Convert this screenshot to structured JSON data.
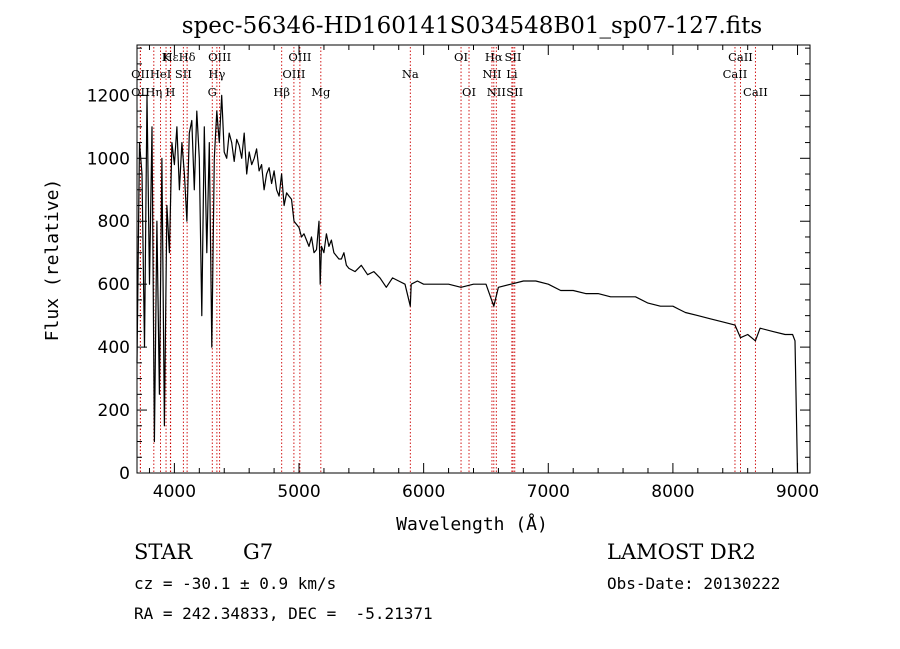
{
  "chart_data": {
    "type": "line",
    "title": "spec-56346-HD160141S034548B01_sp07-127.fits",
    "xlabel": "Wavelength (Å)",
    "ylabel": "Flux (relative)",
    "xlim": [
      3700,
      9100
    ],
    "ylim": [
      0,
      1360
    ],
    "grid": false,
    "xticks": [
      4000,
      5000,
      6000,
      7000,
      8000,
      9000
    ],
    "yticks": [
      0,
      200,
      400,
      600,
      800,
      1000,
      1200
    ],
    "series": [
      {
        "x": [
          3700,
          3720,
          3740,
          3760,
          3780,
          3800,
          3820,
          3840,
          3860,
          3880,
          3900,
          3920,
          3940,
          3960,
          3980,
          4000,
          4020,
          4040,
          4060,
          4080,
          4100,
          4120,
          4140,
          4160,
          4180,
          4200,
          4220,
          4240,
          4260,
          4280,
          4300,
          4320,
          4340,
          4360,
          4380,
          4400,
          4420,
          4440,
          4460,
          4480,
          4500,
          4520,
          4540,
          4560,
          4580,
          4600,
          4620,
          4640,
          4660,
          4680,
          4700,
          4720,
          4740,
          4760,
          4780,
          4800,
          4820,
          4840,
          4860,
          4880,
          4900,
          4920,
          4940,
          4960,
          4980,
          5000,
          5020,
          5040,
          5060,
          5080,
          5100,
          5120,
          5140,
          5160,
          5170,
          5180,
          5200,
          5220,
          5240,
          5260,
          5280,
          5300,
          5320,
          5340,
          5360,
          5380,
          5400,
          5450,
          5500,
          5550,
          5600,
          5650,
          5700,
          5750,
          5800,
          5850,
          5893,
          5900,
          5950,
          6000,
          6100,
          6200,
          6300,
          6400,
          6500,
          6563,
          6600,
          6700,
          6800,
          6900,
          7000,
          7100,
          7200,
          7300,
          7400,
          7500,
          7600,
          7700,
          7800,
          7900,
          8000,
          8050,
          8100,
          8200,
          8300,
          8400,
          8498,
          8542,
          8600,
          8662,
          8700,
          8800,
          8900,
          8960,
          8980,
          9000
        ],
        "y": [
          350,
          1050,
          950,
          400,
          1200,
          600,
          1100,
          100,
          800,
          250,
          1000,
          150,
          850,
          700,
          1050,
          980,
          1100,
          900,
          1050,
          950,
          800,
          1080,
          1120,
          900,
          1150,
          1000,
          500,
          1100,
          700,
          1050,
          400,
          1000,
          1150,
          1050,
          1200,
          1020,
          1000,
          1080,
          1050,
          990,
          1060,
          1040,
          1000,
          1080,
          950,
          1020,
          980,
          1000,
          1030,
          960,
          980,
          900,
          950,
          970,
          920,
          960,
          900,
          880,
          950,
          850,
          890,
          880,
          870,
          800,
          790,
          780,
          750,
          760,
          740,
          720,
          750,
          700,
          710,
          800,
          600,
          720,
          700,
          760,
          720,
          740,
          700,
          690,
          680,
          680,
          700,
          660,
          650,
          640,
          660,
          630,
          640,
          620,
          590,
          620,
          610,
          600,
          530,
          600,
          610,
          600,
          600,
          600,
          590,
          600,
          600,
          530,
          590,
          600,
          610,
          610,
          600,
          580,
          580,
          570,
          570,
          560,
          560,
          560,
          540,
          530,
          530,
          520,
          510,
          500,
          490,
          480,
          470,
          430,
          440,
          420,
          460,
          450,
          440,
          440,
          420,
          0
        ]
      }
    ],
    "annotations": [
      {
        "label": "Hε",
        "x": 3970,
        "row": 1
      },
      {
        "label": "K",
        "x": 3933,
        "row": 1
      },
      {
        "label": "Hδ",
        "x": 4102,
        "row": 1
      },
      {
        "label": "OII",
        "x": 3727,
        "row": 2
      },
      {
        "label": "HeI",
        "x": 3889,
        "row": 2
      },
      {
        "label": "SII",
        "x": 4072,
        "row": 2
      },
      {
        "label": "OIII",
        "x": 4363,
        "row": 1
      },
      {
        "label": "Hγ",
        "x": 4341,
        "row": 2
      },
      {
        "label": "G",
        "x": 4304,
        "row": 3
      },
      {
        "label": "OII",
        "x": 3727,
        "row": 3
      },
      {
        "label": "Hη",
        "x": 3835,
        "row": 3
      },
      {
        "label": "H",
        "x": 3968,
        "row": 3
      },
      {
        "label": "OIII",
        "x": 5007,
        "row": 1
      },
      {
        "label": "OIII",
        "x": 4959,
        "row": 2
      },
      {
        "label": "Hβ",
        "x": 4861,
        "row": 3
      },
      {
        "label": "Mg",
        "x": 5175,
        "row": 3
      },
      {
        "label": "Na",
        "x": 5893,
        "row": 2
      },
      {
        "label": "OI",
        "x": 6300,
        "row": 1
      },
      {
        "label": "OI",
        "x": 6364,
        "row": 3
      },
      {
        "label": "Hα",
        "x": 6563,
        "row": 1
      },
      {
        "label": "SII",
        "x": 6717,
        "row": 1
      },
      {
        "label": "NII",
        "x": 6548,
        "row": 2
      },
      {
        "label": "Li",
        "x": 6708,
        "row": 2
      },
      {
        "label": "NII",
        "x": 6583,
        "row": 3
      },
      {
        "label": "SII",
        "x": 6731,
        "row": 3
      },
      {
        "label": "CaII",
        "x": 8542,
        "row": 1
      },
      {
        "label": "CaII",
        "x": 8498,
        "row": 2
      },
      {
        "label": "CaII",
        "x": 8662,
        "row": 3
      }
    ]
  },
  "info": {
    "object_class": "STAR",
    "subclass": "G7",
    "survey": "LAMOST DR2",
    "cz": "cz = -30.1 ± 0.9 km/s",
    "obs_date": "Obs-Date: 20130222",
    "coords": "RA = 242.34833, DEC =  -5.21371"
  }
}
